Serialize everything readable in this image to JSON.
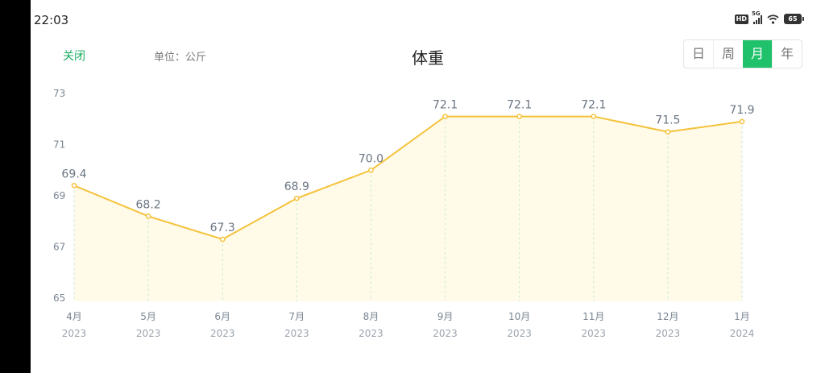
{
  "status_bar": {
    "time": "22:03",
    "network": "5G",
    "hd": "HD",
    "battery": "65",
    "icons": [
      "hd-icon",
      "signal-icon",
      "wifi-icon",
      "battery-icon"
    ]
  },
  "header": {
    "close_label": "关闭",
    "unit_label": "单位：公斤",
    "title": "体重",
    "tabs": [
      {
        "label": "日",
        "active": false
      },
      {
        "label": "周",
        "active": false
      },
      {
        "label": "月",
        "active": true
      },
      {
        "label": "年",
        "active": false
      }
    ]
  },
  "colors": {
    "accent": "#1fc16b",
    "line": "#f5c23c",
    "area": "#fffbe8",
    "guide": "#c9ead8"
  },
  "chart_data": {
    "type": "area",
    "categories": [
      "4月",
      "5月",
      "6月",
      "7月",
      "8月",
      "9月",
      "10月",
      "11月",
      "12月",
      "1月"
    ],
    "years": [
      "2023",
      "2023",
      "2023",
      "2023",
      "2023",
      "2023",
      "2023",
      "2023",
      "2023",
      "2024"
    ],
    "values": [
      69.4,
      68.2,
      67.3,
      68.9,
      70.0,
      72.1,
      72.1,
      72.1,
      71.5,
      71.9
    ],
    "value_labels": [
      "69.4",
      "68.2",
      "67.3",
      "68.9",
      "70.0",
      "72.1",
      "72.1",
      "72.1",
      "71.5",
      "71.9"
    ],
    "yticks": [
      "65",
      "67",
      "69",
      "71",
      "73"
    ],
    "ylim": [
      65,
      73
    ],
    "grid": false,
    "title": "",
    "xlabel": "",
    "ylabel": ""
  }
}
